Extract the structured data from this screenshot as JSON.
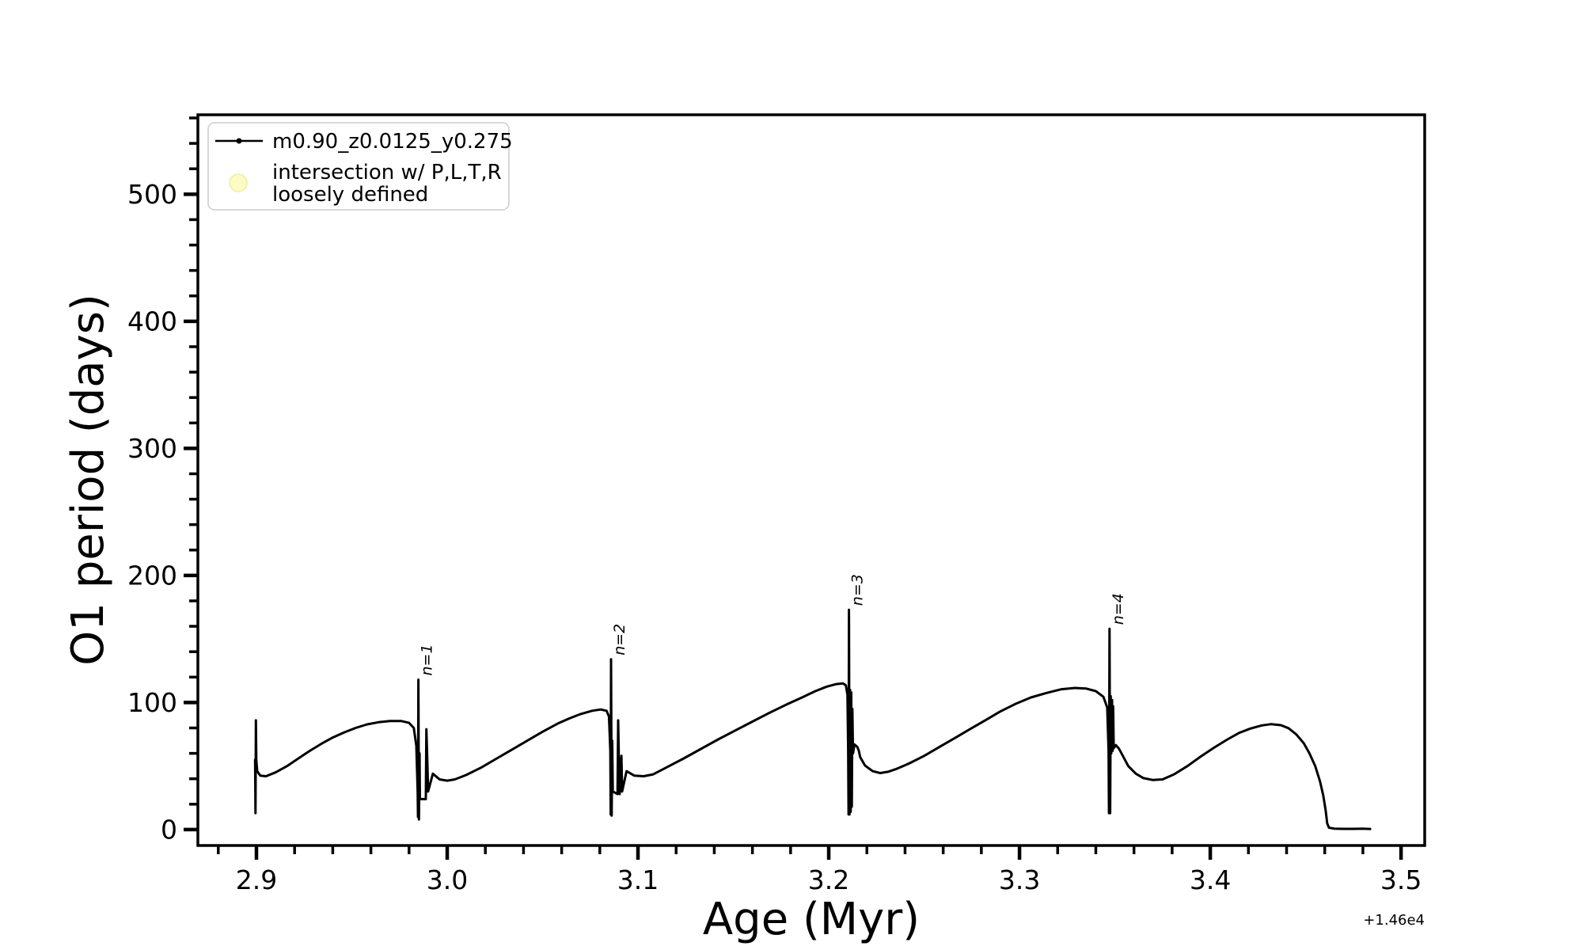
{
  "figure": {
    "xlabel": "Age (Myr)",
    "ylabel": "O1 period (days)",
    "x_offset_text": "+1.46e4",
    "background_color": "#ffffff",
    "line_color": "#000000"
  },
  "legend": {
    "series_label": "m0.90_z0.0125_y0.275",
    "intersection_label_line1": "intersection w/ P,L,T,R",
    "intersection_label_line2": "loosely defined",
    "marker_fill": "#FCFCC2",
    "marker_edge": "#EDEDA8"
  },
  "chart_data": {
    "type": "line",
    "title": "",
    "xlabel": "Age (Myr)",
    "ylabel": "O1 period (days)",
    "x_offset": "+1.46e4",
    "legend_position": "upper left",
    "grid": false,
    "xlim": [
      2.8693,
      3.5124
    ],
    "ylim": [
      -12.5,
      562.5
    ],
    "x_major_ticks": [
      2.9,
      3.0,
      3.1,
      3.2,
      3.3,
      3.4,
      3.5
    ],
    "x_tick_labels": [
      "2.9",
      "3.0",
      "3.1",
      "3.2",
      "3.3",
      "3.4",
      "3.5"
    ],
    "y_major_ticks": [
      0,
      100,
      200,
      300,
      400,
      500
    ],
    "y_tick_labels": [
      "0",
      "100",
      "200",
      "300",
      "400",
      "500"
    ],
    "x_minor_step": 0.02,
    "y_minor_step": 20,
    "annotations": [
      {
        "text": "n=1",
        "x": 2.9849,
        "y": 118
      },
      {
        "text": "n=2",
        "x": 3.0859,
        "y": 134
      },
      {
        "text": "n=3",
        "x": 3.2106,
        "y": 173
      },
      {
        "text": "n=4",
        "x": 3.3472,
        "y": 158
      }
    ],
    "series": [
      {
        "name": "m0.90_z0.0125_y0.275",
        "color": "#000000",
        "points": [
          [
            2.8993,
            55
          ],
          [
            2.8995,
            13
          ],
          [
            2.8997,
            86
          ],
          [
            2.8999,
            55
          ],
          [
            2.9004,
            46
          ],
          [
            2.902,
            42.5
          ],
          [
            2.905,
            42
          ],
          [
            2.91,
            45
          ],
          [
            2.916,
            50
          ],
          [
            2.922,
            56
          ],
          [
            2.928,
            62
          ],
          [
            2.934,
            67.5
          ],
          [
            2.94,
            72.5
          ],
          [
            2.946,
            76.5
          ],
          [
            2.952,
            80
          ],
          [
            2.958,
            82.8
          ],
          [
            2.964,
            84.5
          ],
          [
            2.97,
            85.5
          ],
          [
            2.976,
            85.4
          ],
          [
            2.98,
            84
          ],
          [
            2.9825,
            80
          ],
          [
            2.9838,
            66
          ],
          [
            2.9845,
            30
          ],
          [
            2.9847,
            10
          ],
          [
            2.9849,
            118
          ],
          [
            2.9852,
            8
          ],
          [
            2.9855,
            60
          ],
          [
            2.9857,
            24
          ],
          [
            2.9888,
            24
          ],
          [
            2.9891,
            79
          ],
          [
            2.9895,
            58
          ],
          [
            2.99,
            30
          ],
          [
            2.9925,
            44
          ],
          [
            2.996,
            39.5
          ],
          [
            3.0,
            38.5
          ],
          [
            3.004,
            39.5
          ],
          [
            3.01,
            43
          ],
          [
            3.018,
            49
          ],
          [
            3.026,
            56
          ],
          [
            3.034,
            63
          ],
          [
            3.042,
            70
          ],
          [
            3.05,
            77
          ],
          [
            3.058,
            83.5
          ],
          [
            3.064,
            87.5
          ],
          [
            3.07,
            91
          ],
          [
            3.076,
            93.5
          ],
          [
            3.0805,
            94.5
          ],
          [
            3.0835,
            93.5
          ],
          [
            3.0848,
            89
          ],
          [
            3.0855,
            62
          ],
          [
            3.0857,
            12
          ],
          [
            3.0859,
            134
          ],
          [
            3.0862,
            11
          ],
          [
            3.0865,
            70
          ],
          [
            3.0868,
            30
          ],
          [
            3.0893,
            28
          ],
          [
            3.0896,
            86
          ],
          [
            3.09,
            55
          ],
          [
            3.0904,
            28
          ],
          [
            3.0913,
            58
          ],
          [
            3.0917,
            30
          ],
          [
            3.094,
            46
          ],
          [
            3.098,
            42.5
          ],
          [
            3.103,
            42
          ],
          [
            3.108,
            43.5
          ],
          [
            3.115,
            49
          ],
          [
            3.124,
            56
          ],
          [
            3.133,
            63.5
          ],
          [
            3.142,
            71
          ],
          [
            3.151,
            78
          ],
          [
            3.16,
            85
          ],
          [
            3.169,
            92
          ],
          [
            3.178,
            98.5
          ],
          [
            3.186,
            104
          ],
          [
            3.193,
            109
          ],
          [
            3.199,
            112.5
          ],
          [
            3.204,
            114.5
          ],
          [
            3.2075,
            115
          ],
          [
            3.209,
            113.5
          ],
          [
            3.2098,
            106
          ],
          [
            3.2102,
            62
          ],
          [
            3.2104,
            12
          ],
          [
            3.2106,
            173
          ],
          [
            3.2109,
            12
          ],
          [
            3.2112,
            110
          ],
          [
            3.2115,
            14
          ],
          [
            3.2118,
            108
          ],
          [
            3.2121,
            18
          ],
          [
            3.2124,
            95
          ],
          [
            3.2127,
            60
          ],
          [
            3.2135,
            67
          ],
          [
            3.215,
            65
          ],
          [
            3.2158,
            62
          ],
          [
            3.2165,
            57
          ],
          [
            3.219,
            50.5
          ],
          [
            3.223,
            46
          ],
          [
            3.227,
            44.5
          ],
          [
            3.231,
            45.5
          ],
          [
            3.235,
            47.5
          ],
          [
            3.242,
            52
          ],
          [
            3.25,
            58
          ],
          [
            3.258,
            65
          ],
          [
            3.266,
            72
          ],
          [
            3.274,
            79
          ],
          [
            3.282,
            86
          ],
          [
            3.29,
            93
          ],
          [
            3.298,
            99
          ],
          [
            3.306,
            104
          ],
          [
            3.314,
            107.5
          ],
          [
            3.322,
            110.5
          ],
          [
            3.329,
            111.5
          ],
          [
            3.335,
            111
          ],
          [
            3.34,
            109
          ],
          [
            3.344,
            104.5
          ],
          [
            3.346,
            96
          ],
          [
            3.3467,
            62
          ],
          [
            3.3469,
            13
          ],
          [
            3.3472,
            158
          ],
          [
            3.3475,
            13
          ],
          [
            3.3478,
            105
          ],
          [
            3.3481,
            60
          ],
          [
            3.3485,
            102
          ],
          [
            3.3488,
            62
          ],
          [
            3.3491,
            97
          ],
          [
            3.3494,
            64
          ],
          [
            3.3505,
            66.5
          ],
          [
            3.352,
            64
          ],
          [
            3.3533,
            60.5
          ],
          [
            3.357,
            50
          ],
          [
            3.361,
            44
          ],
          [
            3.365,
            40.5
          ],
          [
            3.37,
            39
          ],
          [
            3.375,
            39.5
          ],
          [
            3.381,
            43.5
          ],
          [
            3.388,
            50
          ],
          [
            3.395,
            57.5
          ],
          [
            3.402,
            64.5
          ],
          [
            3.409,
            71
          ],
          [
            3.415,
            76
          ],
          [
            3.421,
            79.5
          ],
          [
            3.427,
            82
          ],
          [
            3.432,
            83
          ],
          [
            3.437,
            82.2
          ],
          [
            3.441,
            79.8
          ],
          [
            3.445,
            75
          ],
          [
            3.449,
            68
          ],
          [
            3.452,
            60
          ],
          [
            3.455,
            50
          ],
          [
            3.4575,
            38
          ],
          [
            3.4592,
            27
          ],
          [
            3.4605,
            15
          ],
          [
            3.4613,
            5
          ],
          [
            3.4622,
            1.5
          ],
          [
            3.465,
            0.8
          ],
          [
            3.47,
            0.6
          ],
          [
            3.475,
            0.6
          ],
          [
            3.48,
            0.8
          ],
          [
            3.4838,
            0.5
          ]
        ]
      }
    ]
  }
}
